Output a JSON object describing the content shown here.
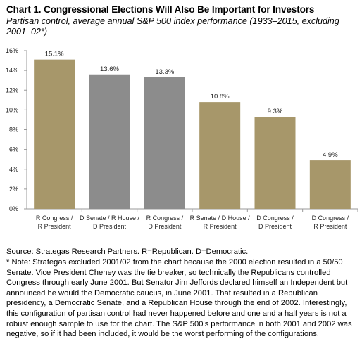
{
  "header": {
    "title": "Chart 1. Congressional Elections Will Also Be Important for Investors",
    "subtitle": "Partisan control, average annual S&P 500 index performance (1933–2015, excluding 2001–02*)"
  },
  "footer": {
    "source": "Source: Strategas Research Partners. R=Republican. D=Democratic.",
    "note": "* Note: Strategas excluded 2001/02 from the chart because the 2000 election resulted in a 50/50 Senate. Vice President Cheney was the tie breaker, so technically the Republicans controlled Congress through early June 2001. But Senator Jim Jeffords declared himself an Independent but announced he would the Democratic caucus, in June 2001. That resulted in a Republican presidency, a Democratic Senate, and a Republican House through the end of 2002. Interestingly, this configuration of partisan control had never happened before and one and a half years is not a robust enough sample to use for the chart.  The S&P 500's performance in both 2001 and 2002 was negative, so if it had been included, it would be the worst performing of the configurations."
  },
  "chart_data": {
    "type": "bar",
    "title": "Chart 1. Congressional Elections Will Also Be Important for Investors",
    "subtitle": "Partisan control, average annual S&P 500 index performance (1933–2015, excluding 2001–02*)",
    "categories": [
      [
        "R Congress /",
        "R President"
      ],
      [
        "D Senate / R House /",
        "D President"
      ],
      [
        "R Congress /",
        "D President"
      ],
      [
        "R Senate / D House /",
        "R President"
      ],
      [
        "D Congress /",
        "D President"
      ],
      [
        "D Congress /",
        "R President"
      ]
    ],
    "values": [
      15.1,
      13.6,
      13.3,
      10.8,
      9.3,
      4.9
    ],
    "value_labels": [
      "15.1%",
      "13.6%",
      "13.3%",
      "10.8%",
      "9.3%",
      "4.9%"
    ],
    "bar_colors": [
      "#a7976a",
      "#8c8c8c",
      "#8c8c8c",
      "#a7976a",
      "#a7976a",
      "#a7976a"
    ],
    "ylim": [
      0,
      16
    ],
    "yticks": [
      0,
      2,
      4,
      6,
      8,
      10,
      12,
      14,
      16
    ],
    "ytick_labels": [
      "0%",
      "2%",
      "4%",
      "6%",
      "8%",
      "10%",
      "12%",
      "14%",
      "16%"
    ],
    "grid": false,
    "xlabel": "",
    "ylabel": "",
    "colors": {
      "gold": "#a7976a",
      "gray": "#8c8c8c",
      "axis": "#9a9a9a"
    }
  }
}
